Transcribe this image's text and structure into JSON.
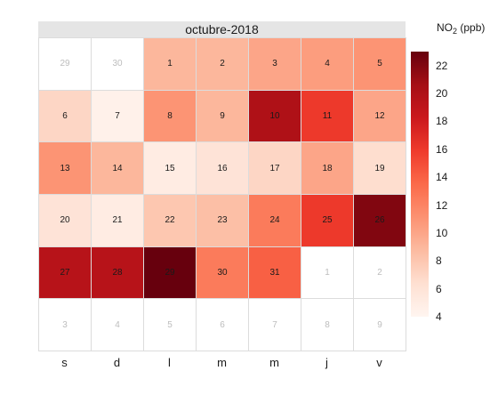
{
  "chart_data": {
    "type": "heatmap",
    "title": "octubre-2018",
    "weekdays": [
      "s",
      "d",
      "l",
      "m",
      "m",
      "j",
      "v"
    ],
    "legend": {
      "title_main": "NO",
      "title_sub": "2",
      "title_unit": "(ppb)",
      "min": 4,
      "max": 23,
      "ticks": [
        4,
        6,
        8,
        10,
        12,
        14,
        16,
        18,
        20,
        22
      ],
      "colors": [
        "#fff5f0",
        "#fee0d2",
        "#fcbba1",
        "#fc9272",
        "#fb6a4a",
        "#ef3b2c",
        "#cb181d",
        "#a50f15",
        "#67000d"
      ]
    },
    "weeks": [
      [
        {
          "day": "29",
          "value": null
        },
        {
          "day": "30",
          "value": null
        },
        {
          "day": "1",
          "value": 9
        },
        {
          "day": "2",
          "value": 9
        },
        {
          "day": "3",
          "value": 10
        },
        {
          "day": "4",
          "value": 10.5
        },
        {
          "day": "5",
          "value": 11
        }
      ],
      [
        {
          "day": "6",
          "value": 7
        },
        {
          "day": "7",
          "value": 4.5
        },
        {
          "day": "8",
          "value": 11
        },
        {
          "day": "9",
          "value": 9
        },
        {
          "day": "10",
          "value": 20
        },
        {
          "day": "11",
          "value": 16
        },
        {
          "day": "12",
          "value": 10
        }
      ],
      [
        {
          "day": "13",
          "value": 11
        },
        {
          "day": "14",
          "value": 9
        },
        {
          "day": "15",
          "value": 5
        },
        {
          "day": "16",
          "value": 6
        },
        {
          "day": "17",
          "value": 7
        },
        {
          "day": "18",
          "value": 10
        },
        {
          "day": "19",
          "value": 6.5
        }
      ],
      [
        {
          "day": "20",
          "value": 6
        },
        {
          "day": "21",
          "value": 5
        },
        {
          "day": "22",
          "value": 8
        },
        {
          "day": "23",
          "value": 8.5
        },
        {
          "day": "24",
          "value": 12.5
        },
        {
          "day": "25",
          "value": 16
        },
        {
          "day": "26",
          "value": 22
        }
      ],
      [
        {
          "day": "27",
          "value": 19.5
        },
        {
          "day": "28",
          "value": 19.5
        },
        {
          "day": "29",
          "value": 23
        },
        {
          "day": "30",
          "value": 12.5
        },
        {
          "day": "31",
          "value": 14
        },
        {
          "day": "1",
          "value": null
        },
        {
          "day": "2",
          "value": null
        }
      ],
      [
        {
          "day": "3",
          "value": null
        },
        {
          "day": "4",
          "value": null
        },
        {
          "day": "5",
          "value": null
        },
        {
          "day": "6",
          "value": null
        },
        {
          "day": "7",
          "value": null
        },
        {
          "day": "8",
          "value": null
        },
        {
          "day": "9",
          "value": null
        }
      ]
    ]
  }
}
